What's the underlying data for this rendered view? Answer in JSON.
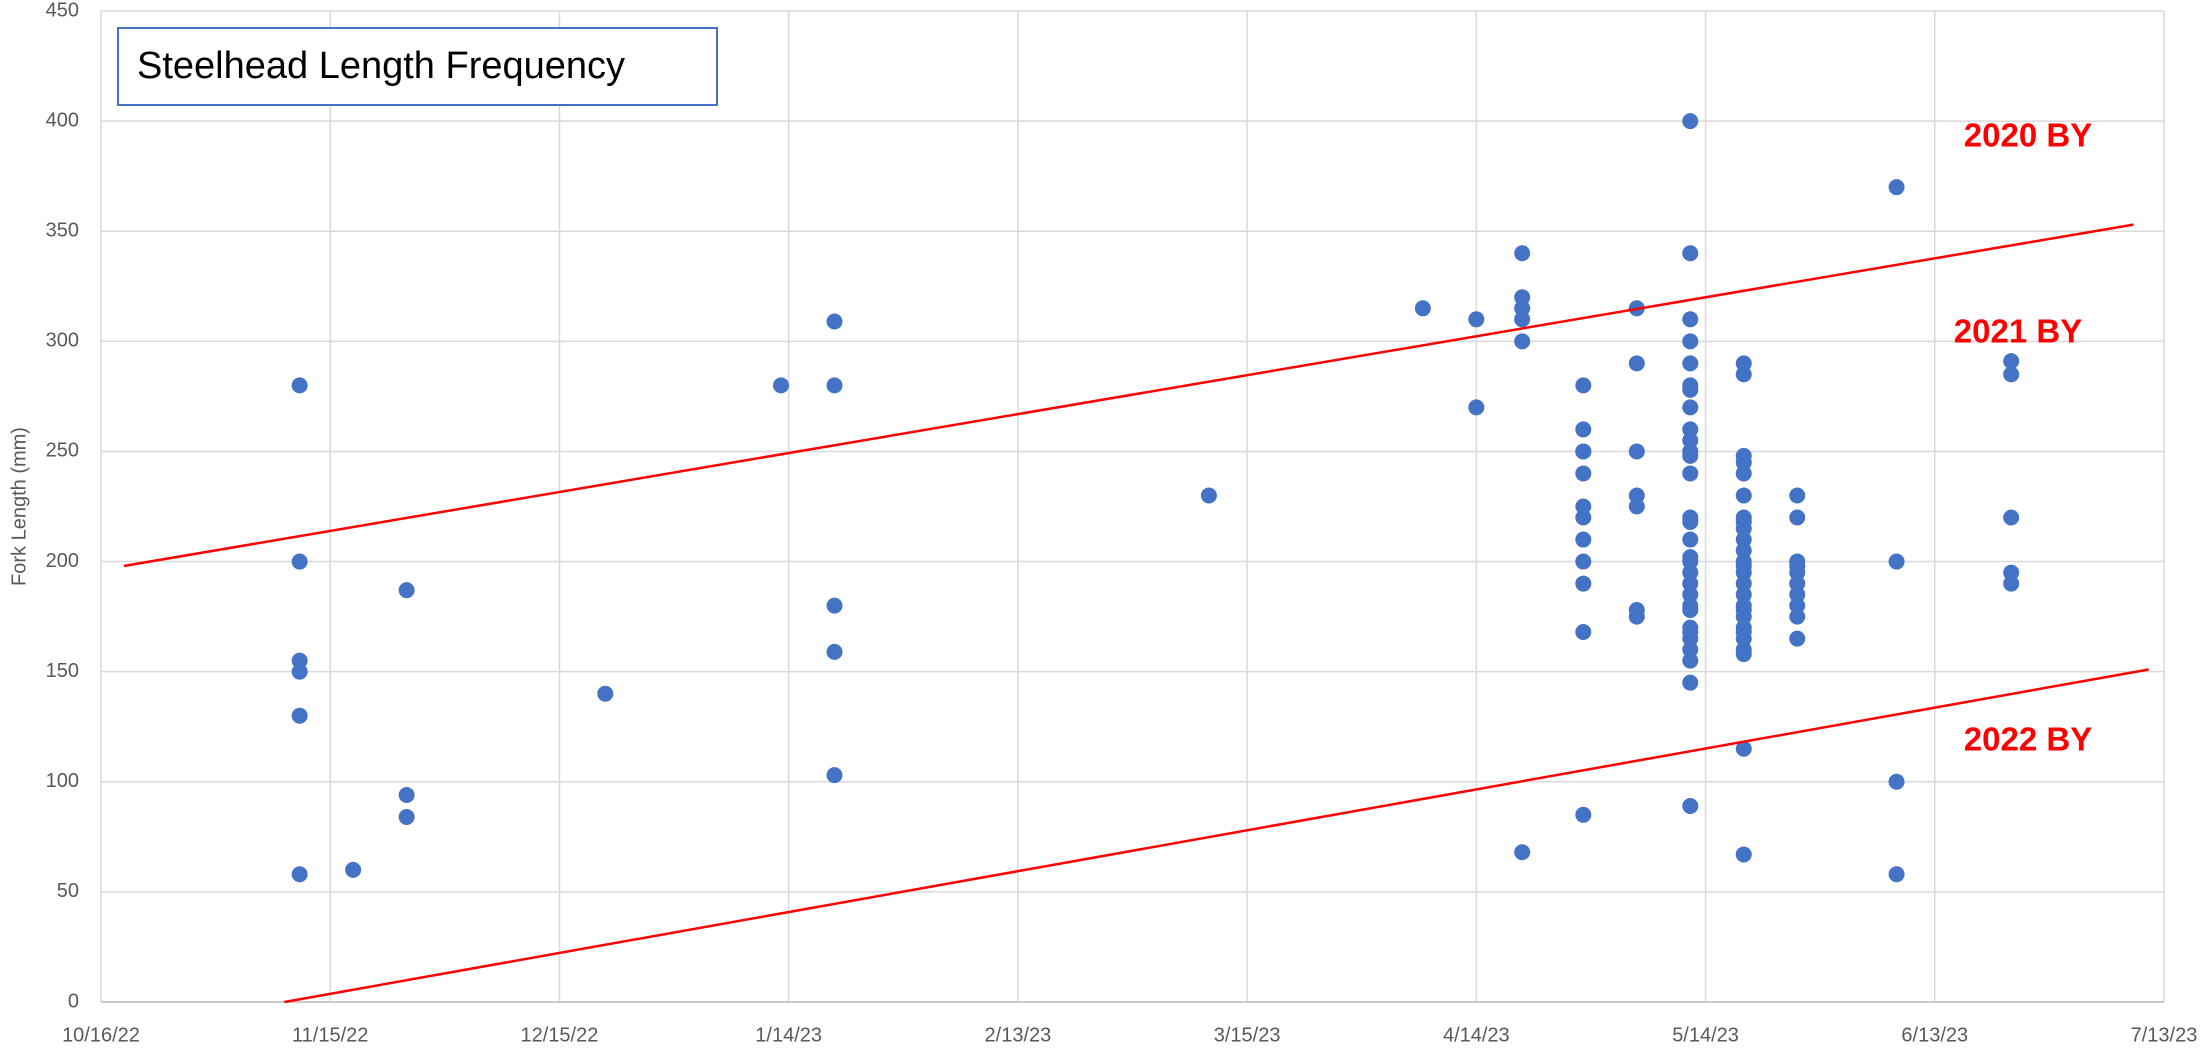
{
  "chart_data": {
    "type": "scatter",
    "title": "Steelhead Length Frequency",
    "y_label": "Fork Length (mm)",
    "color": "#4472c4",
    "grid": true,
    "xlim": [
      "10/16/22",
      "7/13/23"
    ],
    "xticks": [
      "10/16/22",
      "11/15/22",
      "12/15/22",
      "1/14/23",
      "2/13/23",
      "3/15/23",
      "4/14/23",
      "5/14/23",
      "6/13/23",
      "7/13/23"
    ],
    "ylim": [
      0,
      450
    ],
    "yticks": [
      0,
      50,
      100,
      150,
      200,
      250,
      300,
      350,
      400,
      450
    ],
    "x": [
      "11/11/22",
      "11/11/22",
      "11/11/22",
      "11/11/22",
      "11/11/22",
      "11/11/22",
      "11/18/22",
      "11/25/22",
      "11/25/22",
      "11/25/22",
      "12/21/22",
      "1/13/23",
      "1/20/23",
      "1/20/23",
      "1/20/23",
      "1/20/23",
      "1/20/23",
      "3/10/23",
      "4/7/23",
      "4/14/23",
      "4/14/23",
      "4/20/23",
      "4/20/23",
      "4/20/23",
      "4/20/23",
      "4/20/23",
      "4/20/23",
      "4/28/23",
      "4/28/23",
      "4/28/23",
      "4/28/23",
      "4/28/23",
      "4/28/23",
      "4/28/23",
      "4/28/23",
      "4/28/23",
      "4/28/23",
      "4/28/23",
      "4/28/23",
      "5/5/23",
      "5/5/23",
      "5/5/23",
      "5/5/23",
      "5/5/23",
      "5/5/23",
      "5/5/23",
      "5/12/23",
      "5/12/23",
      "5/12/23",
      "5/12/23",
      "5/12/23",
      "5/12/23",
      "5/12/23",
      "5/12/23",
      "5/12/23",
      "5/12/23",
      "5/12/23",
      "5/12/23",
      "5/12/23",
      "5/12/23",
      "5/12/23",
      "5/12/23",
      "5/12/23",
      "5/12/23",
      "5/12/23",
      "5/12/23",
      "5/12/23",
      "5/12/23",
      "5/12/23",
      "5/12/23",
      "5/12/23",
      "5/12/23",
      "5/12/23",
      "5/12/23",
      "5/12/23",
      "5/12/23",
      "5/19/23",
      "5/19/23",
      "5/19/23",
      "5/19/23",
      "5/19/23",
      "5/19/23",
      "5/19/23",
      "5/19/23",
      "5/19/23",
      "5/19/23",
      "5/19/23",
      "5/19/23",
      "5/19/23",
      "5/19/23",
      "5/19/23",
      "5/19/23",
      "5/19/23",
      "5/19/23",
      "5/19/23",
      "5/19/23",
      "5/19/23",
      "5/19/23",
      "5/19/23",
      "5/19/23",
      "5/19/23",
      "5/19/23",
      "5/26/23",
      "5/26/23",
      "5/26/23",
      "5/26/23",
      "5/26/23",
      "5/26/23",
      "5/26/23",
      "5/26/23",
      "5/26/23",
      "5/26/23",
      "6/8/23",
      "6/8/23",
      "6/8/23",
      "6/8/23",
      "6/23/23",
      "6/23/23",
      "6/23/23",
      "6/23/23",
      "6/23/23"
    ],
    "values": [
      280,
      200,
      155,
      150,
      130,
      58,
      60,
      187,
      94,
      84,
      140,
      280,
      309,
      280,
      180,
      159,
      103,
      230,
      315,
      310,
      270,
      340,
      320,
      315,
      310,
      300,
      68,
      280,
      260,
      250,
      250,
      240,
      225,
      220,
      210,
      200,
      190,
      168,
      85,
      315,
      290,
      250,
      230,
      225,
      178,
      175,
      400,
      340,
      310,
      300,
      290,
      280,
      278,
      270,
      260,
      255,
      250,
      248,
      240,
      220,
      218,
      210,
      202,
      200,
      195,
      190,
      185,
      180,
      178,
      170,
      168,
      165,
      160,
      155,
      145,
      89,
      290,
      285,
      248,
      245,
      240,
      230,
      220,
      218,
      215,
      210,
      205,
      200,
      198,
      195,
      190,
      185,
      180,
      178,
      175,
      170,
      168,
      165,
      160,
      158,
      115,
      67,
      230,
      220,
      200,
      198,
      195,
      190,
      185,
      180,
      175,
      165,
      370,
      200,
      100,
      58,
      291,
      285,
      220,
      195,
      190
    ],
    "lines": [
      {
        "color": "#ff0000",
        "x": [
          "10/19/22",
          "7/9/23"
        ],
        "values": [
          198,
          353
        ]
      },
      {
        "color": "#ff0000",
        "x": [
          "11/9/22",
          "7/11/23"
        ],
        "values": [
          0,
          151
        ]
      }
    ],
    "annotations": [
      {
        "text": "2020 BY",
        "color": "#ff0000"
      },
      {
        "text": "2021 BY",
        "color": "#ff0000"
      },
      {
        "text": "2022 BY",
        "color": "#ff0000"
      }
    ]
  }
}
